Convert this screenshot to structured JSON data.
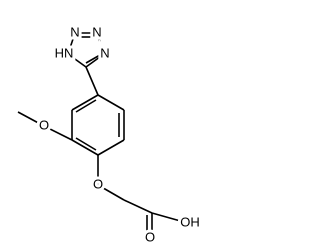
{
  "atoms": [
    "HN",
    "N",
    "N",
    "N",
    "O",
    "O",
    "O",
    "OH"
  ]
}
